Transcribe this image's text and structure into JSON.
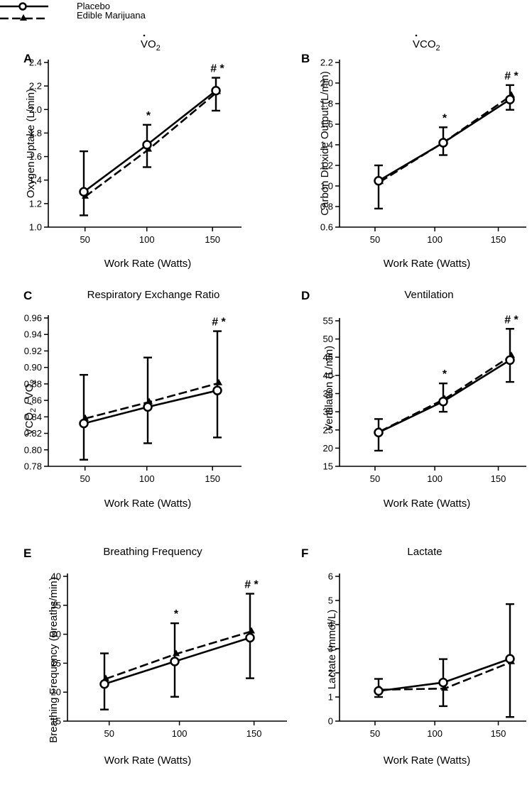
{
  "legend": {
    "placebo": "Placebo",
    "marijuana": "Edible Marijuana"
  },
  "chart_data": [
    {
      "type": "line",
      "panel": "A",
      "title": "VO2",
      "title_main": "V",
      "title_sub": "2",
      "title_mid": "O",
      "xlabel": "Work Rate (Watts)",
      "ylabel": "Oxygen Uptake (L/min)",
      "categories": [
        50,
        100,
        150
      ],
      "xticks": [
        "50",
        "100",
        "150"
      ],
      "ylim": [
        1.0,
        2.4
      ],
      "yticks": [
        "1.0",
        "1.2",
        "1.4",
        "1.6",
        "1.8",
        "2.0",
        "2.2",
        "2.4"
      ],
      "series": [
        {
          "name": "Placebo",
          "values": [
            1.3,
            1.7,
            2.16
          ],
          "err_up": [
            1.645,
            1.87,
            2.27
          ],
          "err_lo": [
            1.1,
            1.51,
            1.99
          ]
        },
        {
          "name": "Edible Marijuana",
          "values": [
            1.26,
            1.66,
            2.15
          ],
          "err_up": [
            1.26,
            1.66,
            2.15
          ],
          "err_lo": [
            1.26,
            1.66,
            2.15
          ]
        }
      ],
      "annotations": [
        {
          "x": 100,
          "text": "*"
        },
        {
          "x": 150,
          "text": "# *"
        }
      ]
    },
    {
      "type": "line",
      "panel": "B",
      "title": "VCO2",
      "title_main": "V",
      "title_mid": "CO",
      "title_sub": "2",
      "xlabel": "Work Rate (Watts)",
      "ylabel": "Carbon Dioxide Output (L/min)",
      "categories": [
        50,
        100,
        150
      ],
      "xticks": [
        "50",
        "100",
        "150"
      ],
      "ylim": [
        0.6,
        2.2
      ],
      "yticks": [
        "0.6",
        "0.8",
        "1.0",
        "1.2",
        "1.4",
        "1.6",
        "1.8",
        "2.0",
        "2.2"
      ],
      "series": [
        {
          "name": "Placebo",
          "values": [
            1.05,
            1.42,
            1.84
          ],
          "err_up": [
            1.2,
            1.57,
            1.98
          ],
          "err_lo": [
            0.78,
            1.3,
            1.74
          ]
        },
        {
          "name": "Edible Marijuana",
          "values": [
            1.04,
            1.43,
            1.88
          ],
          "err_up": [
            1.04,
            1.43,
            1.88
          ],
          "err_lo": [
            1.04,
            1.43,
            1.88
          ]
        }
      ],
      "annotations": [
        {
          "x": 100,
          "text": "*"
        },
        {
          "x": 150,
          "text": "# *"
        }
      ]
    },
    {
      "type": "line",
      "panel": "C",
      "title": "Respiratory Exchange Ratio",
      "xlabel": "Work Rate (Watts)",
      "ylabel": "VCO2 / VO2",
      "ylab_a": "V",
      "ylab_b": "CO",
      "ylab_c": "2",
      "ylab_d": " / ",
      "ylab_e": "V",
      "ylab_f": "O",
      "ylab_g": "2",
      "categories": [
        50,
        100,
        150
      ],
      "xticks": [
        "50",
        "100",
        "150"
      ],
      "ylim": [
        0.78,
        0.96
      ],
      "yticks": [
        "0.78",
        "0.80",
        "0.82",
        "0.84",
        "0.86",
        "0.88",
        "0.90",
        "0.92",
        "0.94",
        "0.96"
      ],
      "series": [
        {
          "name": "Placebo",
          "values": [
            0.832,
            0.852,
            0.872
          ],
          "err_up": [
            0.891,
            0.912,
            0.944
          ],
          "err_lo": [
            0.788,
            0.808,
            0.815
          ]
        },
        {
          "name": "Edible Marijuana",
          "values": [
            0.838,
            0.858,
            0.881
          ],
          "err_up": [
            0.838,
            0.858,
            0.881
          ],
          "err_lo": [
            0.838,
            0.858,
            0.881
          ]
        }
      ],
      "annotations": [
        {
          "x": 150,
          "text": "# *"
        }
      ]
    },
    {
      "type": "line",
      "panel": "D",
      "title": "Ventilation",
      "xlabel": "Work Rate (Watts)",
      "ylabel": "Ventilation (L/min)",
      "categories": [
        50,
        100,
        150
      ],
      "xticks": [
        "50",
        "100",
        "150"
      ],
      "ylim": [
        15,
        55
      ],
      "yticks": [
        "15",
        "20",
        "25",
        "30",
        "35",
        "40",
        "45",
        "50",
        "55"
      ],
      "series": [
        {
          "name": "Placebo",
          "values": [
            24.3,
            32.8,
            44.2
          ],
          "err_up": [
            28.0,
            37.8,
            52.8
          ],
          "err_lo": [
            19.3,
            30.0,
            38.2
          ]
        },
        {
          "name": "Edible Marijuana",
          "values": [
            24.6,
            33.5,
            45.4
          ],
          "err_up": [
            24.6,
            33.5,
            45.4
          ],
          "err_lo": [
            24.6,
            33.5,
            45.4
          ]
        }
      ],
      "annotations": [
        {
          "x": 100,
          "text": "*"
        },
        {
          "x": 150,
          "text": "# *"
        }
      ]
    },
    {
      "type": "line",
      "panel": "E",
      "title": "Breathing Frequency",
      "xlabel": "Work Rate (Watts)",
      "ylabel": "Breathing Frequency (Breaths/min)",
      "categories": [
        50,
        100,
        150
      ],
      "xticks": [
        "50",
        "100",
        "150"
      ],
      "ylim": [
        15,
        40
      ],
      "yticks": [
        "15",
        "20",
        "25",
        "30",
        "35",
        "40"
      ],
      "series": [
        {
          "name": "Placebo",
          "values": [
            21.4,
            25.3,
            29.4
          ],
          "err_up": [
            26.7,
            31.9,
            37.0
          ],
          "err_lo": [
            17.0,
            19.2,
            22.4
          ]
        },
        {
          "name": "Edible Marijuana",
          "values": [
            22.3,
            26.6,
            30.5
          ],
          "err_up": [
            22.3,
            26.6,
            30.5
          ],
          "err_lo": [
            22.3,
            26.6,
            30.5
          ]
        }
      ],
      "annotations": [
        {
          "x": 100,
          "text": "*"
        },
        {
          "x": 150,
          "text": "# *"
        }
      ]
    },
    {
      "type": "line",
      "panel": "F",
      "title": "Lactate",
      "xlabel": "Work Rate (Watts)",
      "ylabel": "Lactate (mmol/L)",
      "categories": [
        50,
        100,
        150
      ],
      "xticks": [
        "50",
        "100",
        "150"
      ],
      "ylim": [
        0,
        6
      ],
      "yticks": [
        "0",
        "1",
        "2",
        "3",
        "4",
        "5",
        "6"
      ],
      "series": [
        {
          "name": "Placebo",
          "values": [
            1.25,
            1.6,
            2.58
          ],
          "err_up": [
            1.75,
            2.57,
            4.85
          ],
          "err_lo": [
            1.0,
            0.62,
            0.17
          ]
        },
        {
          "name": "Edible Marijuana",
          "values": [
            1.3,
            1.35,
            2.45
          ],
          "err_up": [
            1.3,
            1.35,
            2.45
          ],
          "err_lo": [
            1.3,
            1.35,
            2.45
          ]
        }
      ],
      "annotations": []
    }
  ]
}
